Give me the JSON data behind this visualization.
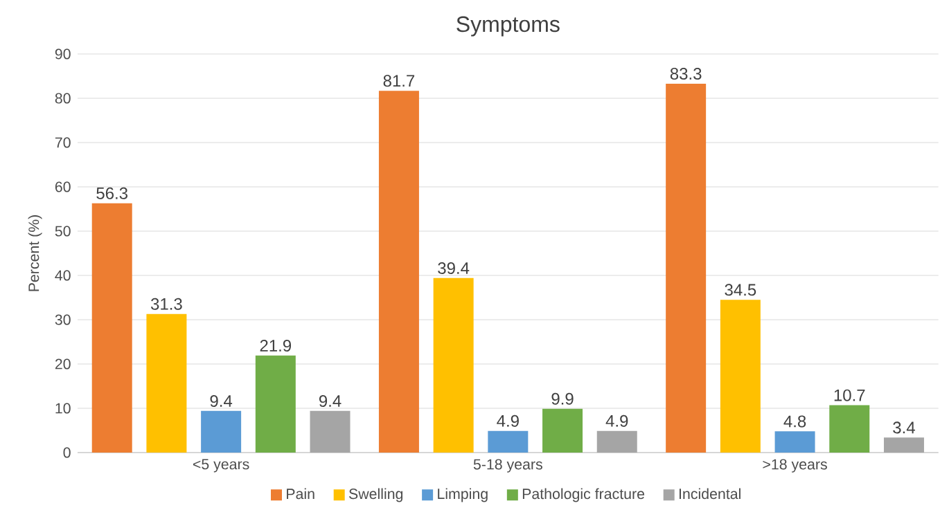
{
  "chart_data": {
    "type": "bar",
    "title": "Symptoms",
    "ylabel": "Percent (%)",
    "categories": [
      "<5 years",
      "5-18 years",
      ">18 years"
    ],
    "series": [
      {
        "name": "Pain",
        "color": "#ed7d31",
        "values": [
          56.3,
          81.7,
          83.3
        ]
      },
      {
        "name": "Swelling",
        "color": "#ffc000",
        "values": [
          31.3,
          39.4,
          34.5
        ]
      },
      {
        "name": "Limping",
        "color": "#5b9bd5",
        "values": [
          9.4,
          4.9,
          4.8
        ]
      },
      {
        "name": "Pathologic fracture",
        "color": "#70ad47",
        "values": [
          21.9,
          9.9,
          10.7
        ]
      },
      {
        "name": "Incidental",
        "color": "#a5a5a5",
        "values": [
          9.4,
          4.9,
          3.4
        ]
      }
    ],
    "ylim": [
      0,
      90
    ],
    "yticks": [
      0,
      10,
      20,
      30,
      40,
      50,
      60,
      70,
      80,
      90
    ],
    "grid": "y",
    "legend": "bottom",
    "data_labels": true
  }
}
